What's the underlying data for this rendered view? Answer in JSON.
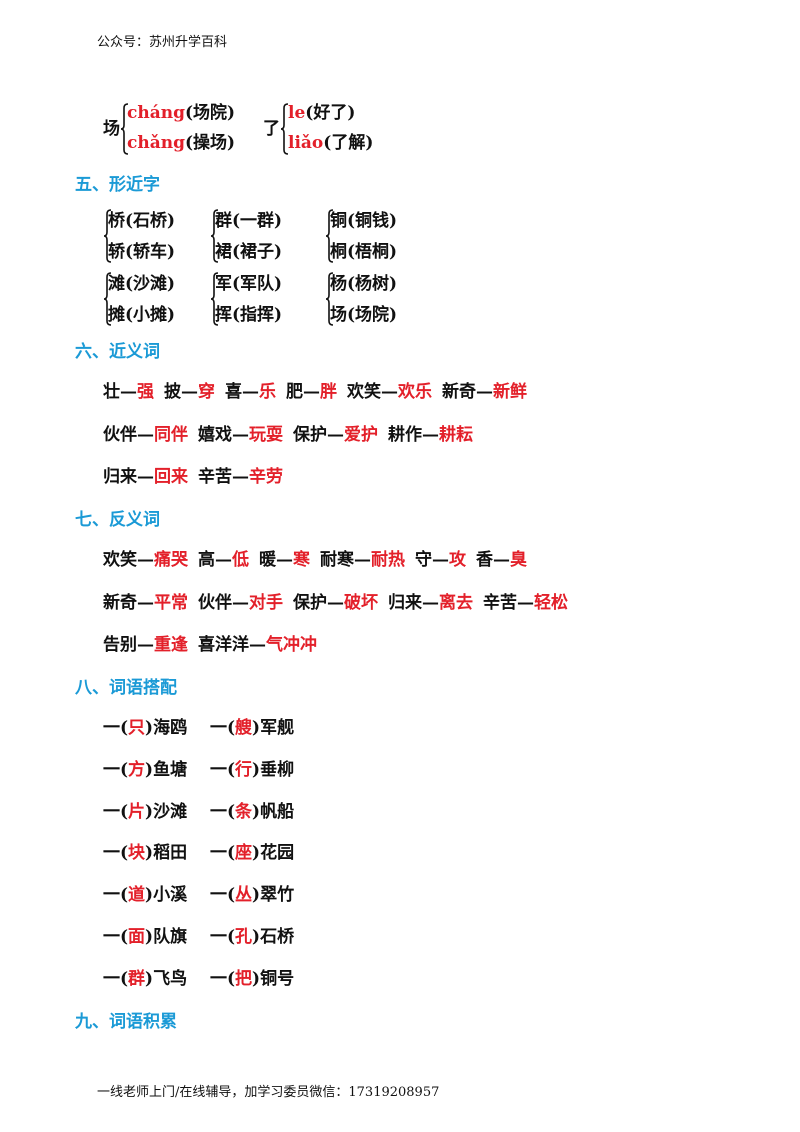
{
  "header": "公众号：苏州升学百科",
  "polyphones": [
    {
      "char": "场",
      "readings": [
        {
          "pinyin": "cháng",
          "word": "(场院)"
        },
        {
          "pinyin": "chǎng",
          "word": "(操场)"
        }
      ]
    },
    {
      "char": "了",
      "readings": [
        {
          "pinyin": "le",
          "word": "(好了)"
        },
        {
          "pinyin": "liǎo",
          "word": "(了解)"
        }
      ]
    }
  ],
  "similar": {
    "title": "五、形近字",
    "groups": [
      [
        "桥(石桥)",
        "轿(轿车)"
      ],
      [
        "群(一群)",
        "裙(裙子)"
      ],
      [
        "铜(铜钱)",
        "桐(梧桐)"
      ],
      [
        "滩(沙滩)",
        "摊(小摊)"
      ],
      [
        "军(军队)",
        "挥(指挥)"
      ],
      [
        "杨(杨树)",
        "场(场院)"
      ]
    ]
  },
  "synonyms": {
    "title": "六、近义词",
    "sep": "—",
    "rows": [
      [
        [
          "壮",
          "强"
        ],
        [
          "披",
          "穿"
        ],
        [
          "喜",
          "乐"
        ],
        [
          "肥",
          "胖"
        ],
        [
          "欢笑",
          "欢乐"
        ],
        [
          "新奇",
          "新鲜"
        ]
      ],
      [
        [
          "伙伴",
          "同伴"
        ],
        [
          "嬉戏",
          "玩耍"
        ],
        [
          "保护",
          "爱护"
        ],
        [
          "耕作",
          "耕耘"
        ]
      ],
      [
        [
          "归来",
          "回来"
        ],
        [
          "辛苦",
          "辛劳"
        ]
      ]
    ]
  },
  "antonyms": {
    "title": "七、反义词",
    "sep": "—",
    "rows": [
      [
        [
          "欢笑",
          "痛哭"
        ],
        [
          "高",
          "低"
        ],
        [
          "暖",
          "寒"
        ],
        [
          "耐寒",
          "耐热"
        ],
        [
          "守",
          "攻"
        ],
        [
          "香",
          "臭"
        ]
      ],
      [
        [
          "新奇",
          "平常"
        ],
        [
          "伙伴",
          "对手"
        ],
        [
          "保护",
          "破坏"
        ],
        [
          "归来",
          "离去"
        ],
        [
          "辛苦",
          "轻松"
        ]
      ],
      [
        [
          "告别",
          "重逢"
        ],
        [
          "喜洋洋",
          "气冲冲"
        ]
      ]
    ]
  },
  "collocations": {
    "title": "八、词语搭配",
    "rows": [
      [
        [
          "一(",
          "只",
          ")海鸥"
        ],
        [
          "一(",
          "艘",
          ")军舰"
        ]
      ],
      [
        [
          "一(",
          "方",
          ")鱼塘"
        ],
        [
          "一(",
          "行",
          ")垂柳"
        ]
      ],
      [
        [
          "一(",
          "片",
          ")沙滩"
        ],
        [
          "一(",
          "条",
          ")帆船"
        ]
      ],
      [
        [
          "一(",
          "块",
          ")稻田"
        ],
        [
          "一(",
          "座",
          ")花园"
        ]
      ],
      [
        [
          "一(",
          "道",
          ")小溪"
        ],
        [
          "一(",
          "丛",
          ")翠竹"
        ]
      ],
      [
        [
          "一(",
          "面",
          ")队旗"
        ],
        [
          "一(",
          "孔",
          ")石桥"
        ]
      ],
      [
        [
          "一(",
          "群",
          ")飞鸟"
        ],
        [
          "一(",
          "把",
          ")铜号"
        ]
      ]
    ]
  },
  "accumulation": {
    "title": "九、词语积累"
  },
  "footer": "一线老师上门/在线辅导，加学习委员微信：17319208957"
}
